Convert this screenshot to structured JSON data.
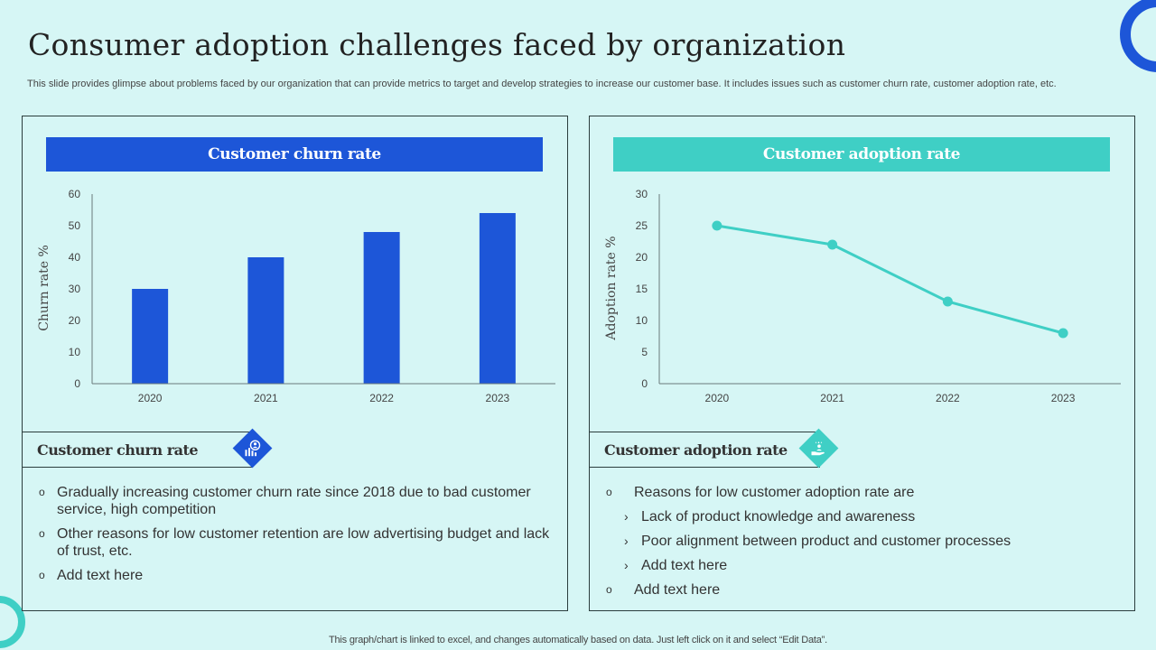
{
  "title": "Consumer adoption challenges faced by organization",
  "subtitle": "This slide provides glimpse about problems faced by our organization that can provide metrics to target and develop strategies to increase our customer base. It includes issues such as customer churn rate, customer adoption rate, etc.",
  "colors": {
    "primary": "#1d56d8",
    "accent": "#3fcfc5",
    "background": "#d6f6f5",
    "text": "#333333"
  },
  "left_panel": {
    "header": "Customer churn rate",
    "section_label": "Customer churn rate",
    "section_icon": "customer-analytics-icon",
    "bullets": [
      "Gradually  increasing customer churn rate since 2018 due to bad customer service, high competition",
      "Other reasons for low customer retention are low advertising budget and lack of trust,  etc.",
      "Add text here"
    ],
    "bullet_marker": "o"
  },
  "right_panel": {
    "header": "Customer adoption rate",
    "section_label": "Customer adoption rate",
    "section_icon": "hand-with-user-icon",
    "bullets": [
      {
        "level": 1,
        "text": "Reasons for low customer adoption rate are"
      },
      {
        "level": 2,
        "text": "Lack of product knowledge and awareness"
      },
      {
        "level": 2,
        "text": "Poor alignment between product and customer processes"
      },
      {
        "level": 2,
        "text": "Add text here"
      },
      {
        "level": 1,
        "text": "Add text here"
      }
    ],
    "markers": {
      "level1": "o",
      "level2": "›"
    }
  },
  "footnote": "This graph/chart is linked to excel,  and changes automatically based on data. Just left click on it and select “Edit Data”.",
  "chart_data": [
    {
      "type": "bar",
      "title": "Customer churn rate",
      "categories": [
        "2020",
        "2021",
        "2022",
        "2023"
      ],
      "values": [
        30,
        40,
        48,
        54
      ],
      "xlabel": "",
      "ylabel": "Churn rate %",
      "ylim": [
        0,
        60
      ],
      "yticks": [
        0,
        10,
        20,
        30,
        40,
        50,
        60
      ],
      "grid": false,
      "color": "#1d56d8"
    },
    {
      "type": "line",
      "title": "Customer adoption rate",
      "categories": [
        "2020",
        "2021",
        "2022",
        "2023"
      ],
      "values": [
        25,
        22,
        13,
        8
      ],
      "xlabel": "",
      "ylabel": "Adoption rate %",
      "ylim": [
        0,
        30
      ],
      "yticks": [
        0,
        5,
        10,
        15,
        20,
        25,
        30
      ],
      "grid": false,
      "markers": true,
      "color": "#3fcfc5"
    }
  ]
}
